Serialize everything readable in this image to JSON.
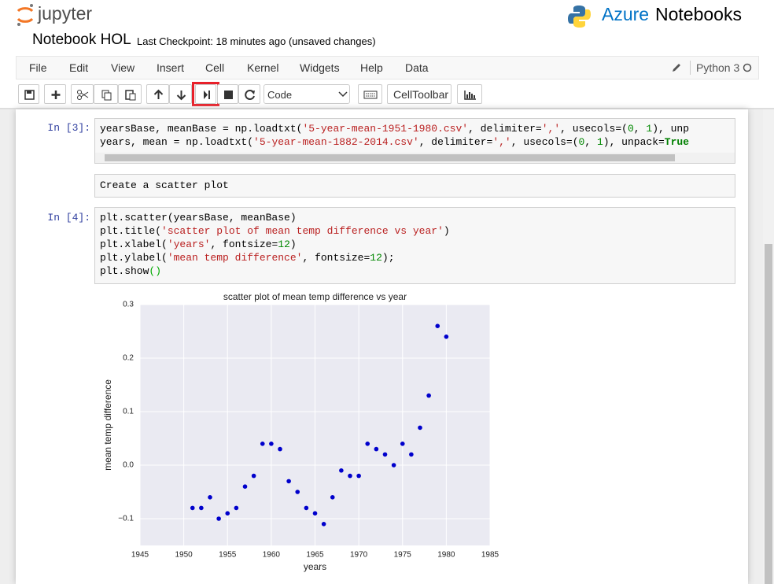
{
  "header": {
    "logo": "jupyter",
    "brand": [
      "Azure",
      "Notebooks"
    ],
    "notebook_name": "Notebook HOL",
    "checkpoint": "Last Checkpoint: 18 minutes ago (unsaved changes)"
  },
  "menu": [
    "File",
    "Edit",
    "View",
    "Insert",
    "Cell",
    "Kernel",
    "Widgets",
    "Help",
    "Data"
  ],
  "kernel": "Python 3",
  "toolbar": {
    "cell_type": "Code",
    "cell_toolbar": "CellToolbar"
  },
  "cells": [
    {
      "prompt": "In [3]:",
      "lines": [
        [
          {
            "text": "yearsBase, meanBase = np.loadtxt(",
            "color": "#000000"
          },
          {
            "text": "'5-year-mean-1951-1980.csv'",
            "color": "#ba2121"
          },
          {
            "text": ", delimiter=",
            "color": "#000000"
          },
          {
            "text": "','",
            "color": "#ba2121"
          },
          {
            "text": ", usecols=(",
            "color": "#000000"
          },
          {
            "text": "0",
            "color": "#008800"
          },
          {
            "text": ", ",
            "color": "#000000"
          },
          {
            "text": "1",
            "color": "#008800"
          },
          {
            "text": "), unp",
            "color": "#000000"
          }
        ],
        [
          {
            "text": "years, mean = np.loadtxt(",
            "color": "#000000"
          },
          {
            "text": "'5-year-mean-1882-2014.csv'",
            "color": "#ba2121"
          },
          {
            "text": ", delimiter=",
            "color": "#000000"
          },
          {
            "text": "','",
            "color": "#ba2121"
          },
          {
            "text": ", usecols=(",
            "color": "#000000"
          },
          {
            "text": "0",
            "color": "#008800"
          },
          {
            "text": ", ",
            "color": "#000000"
          },
          {
            "text": "1",
            "color": "#008800"
          },
          {
            "text": "), unpack=",
            "color": "#000000"
          },
          {
            "text": "True",
            "color": "#008000"
          }
        ]
      ]
    },
    {
      "markdown": "Create a scatter plot"
    },
    {
      "prompt": "In [4]:",
      "lines": [
        [
          {
            "text": "plt.scatter(yearsBase, meanBase)",
            "color": "#000000"
          }
        ],
        [
          {
            "text": "plt.title(",
            "color": "#000000"
          },
          {
            "text": "'scatter plot of mean temp difference vs year'",
            "color": "#ba2121"
          },
          {
            "text": ")",
            "color": "#000000"
          }
        ],
        [
          {
            "text": "plt.xlabel(",
            "color": "#000000"
          },
          {
            "text": "'years'",
            "color": "#ba2121"
          },
          {
            "text": ", fontsize=",
            "color": "#000000"
          },
          {
            "text": "12",
            "color": "#008800"
          },
          {
            "text": ")",
            "color": "#000000"
          }
        ],
        [
          {
            "text": "plt.ylabel(",
            "color": "#000000"
          },
          {
            "text": "'mean temp difference'",
            "color": "#ba2121"
          },
          {
            "text": ", fontsize=",
            "color": "#000000"
          },
          {
            "text": "12",
            "color": "#008800"
          },
          {
            "text": ");",
            "color": "#000000"
          }
        ],
        [
          {
            "text": "plt.show",
            "color": "#000000"
          },
          {
            "text": "()",
            "color": "#00aa00"
          }
        ]
      ]
    }
  ],
  "chart_data": {
    "type": "scatter",
    "title": "scatter plot of mean temp difference vs year",
    "x_label": "years",
    "y_label": "mean temp difference",
    "color": "#0000cc",
    "x": [
      1951,
      1952,
      1953,
      1954,
      1955,
      1956,
      1957,
      1958,
      1959,
      1960,
      1961,
      1962,
      1963,
      1964,
      1965,
      1966,
      1967,
      1968,
      1969,
      1970,
      1971,
      1972,
      1973,
      1974,
      1975,
      1976,
      1977,
      1978,
      1979,
      1980
    ],
    "values": [
      -0.08,
      -0.08,
      -0.06,
      -0.1,
      -0.09,
      -0.08,
      -0.04,
      -0.02,
      0.04,
      0.04,
      0.03,
      -0.03,
      -0.05,
      -0.08,
      -0.09,
      -0.11,
      -0.06,
      -0.01,
      -0.02,
      -0.02,
      0.04,
      0.03,
      0.02,
      0.0,
      0.04,
      0.02,
      0.07,
      0.13,
      0.26,
      0.24
    ],
    "xlim": [
      1945,
      1985
    ],
    "ylim": [
      -0.15,
      0.3
    ],
    "xticks": [
      1945,
      1950,
      1955,
      1960,
      1965,
      1970,
      1975,
      1980,
      1985
    ],
    "yticks": [
      {
        "value": -0.1,
        "label": "−0.1"
      },
      {
        "value": 0,
        "label": "0.0"
      },
      0.1,
      0.2,
      0.3
    ],
    "grid": true
  }
}
